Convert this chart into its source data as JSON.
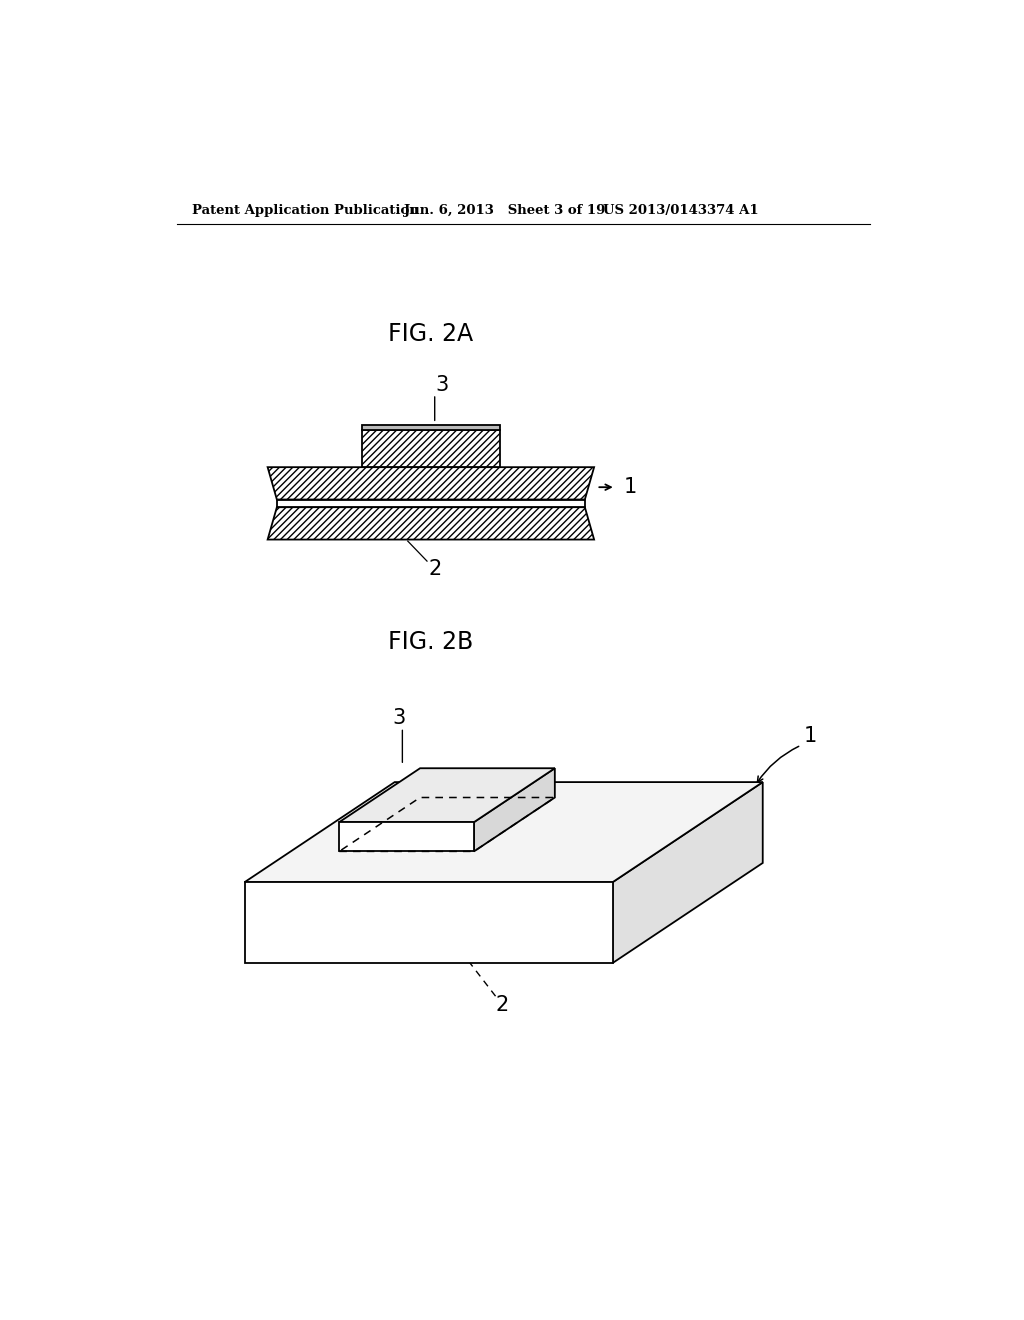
{
  "background_color": "#ffffff",
  "header_left": "Patent Application Publication",
  "header_middle": "Jun. 6, 2013   Sheet 3 of 19",
  "header_right": "US 2013/0143374 A1",
  "fig2a_label": "FIG. 2A",
  "fig2b_label": "FIG. 2B",
  "label_1": "1",
  "label_2": "2",
  "label_3": "3",
  "line_color": "#000000",
  "hatch_color": "#000000"
}
